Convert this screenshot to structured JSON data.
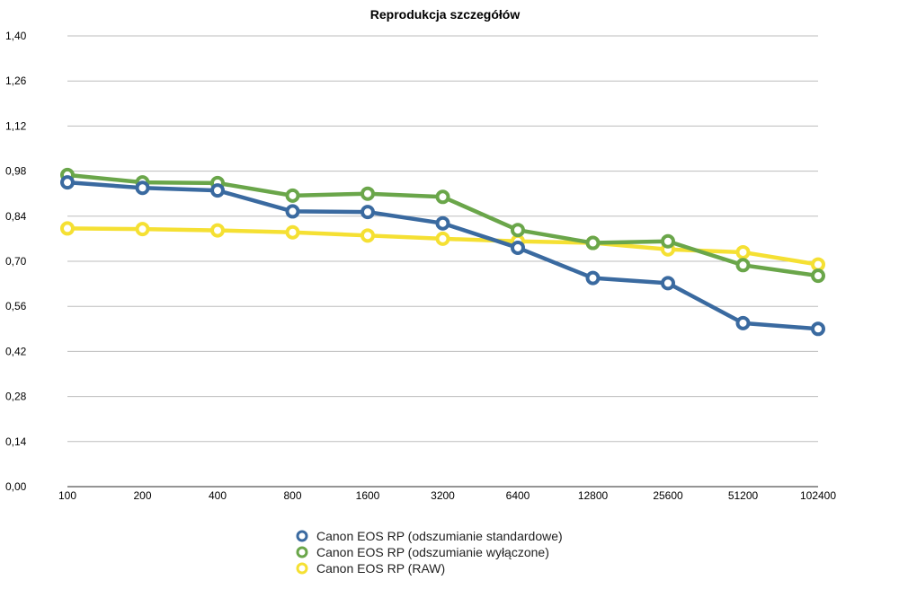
{
  "chart_data": {
    "type": "line",
    "title": "Reprodukcja szczegółów",
    "xlabel": "",
    "ylabel": "",
    "categories": [
      "100",
      "200",
      "400",
      "800",
      "1600",
      "3200",
      "6400",
      "12800",
      "25600",
      "51200",
      "102400"
    ],
    "ylim": [
      0,
      1.4
    ],
    "yticks": [
      "0,00",
      "0,14",
      "0,28",
      "0,42",
      "0,56",
      "0,70",
      "0,84",
      "0,98",
      "1,12",
      "1,26",
      "1,40"
    ],
    "grid": true,
    "legend_position": "bottom",
    "series": [
      {
        "name": "Canon EOS RP (odszumianie standardowe)",
        "color": "#3a6aa0",
        "values": [
          0.945,
          0.928,
          0.92,
          0.855,
          0.853,
          0.818,
          0.742,
          0.648,
          0.632,
          0.508,
          0.49
        ]
      },
      {
        "name": "Canon EOS RP (odszumianie wyłączone)",
        "color": "#6aa64a",
        "values": [
          0.968,
          0.945,
          0.943,
          0.904,
          0.91,
          0.9,
          0.797,
          0.757,
          0.762,
          0.688,
          0.655
        ]
      },
      {
        "name": "Canon EOS RP (RAW)",
        "color": "#f5e033",
        "values": [
          0.802,
          0.8,
          0.796,
          0.79,
          0.78,
          0.77,
          0.762,
          0.757,
          0.737,
          0.728,
          0.69
        ]
      }
    ]
  }
}
